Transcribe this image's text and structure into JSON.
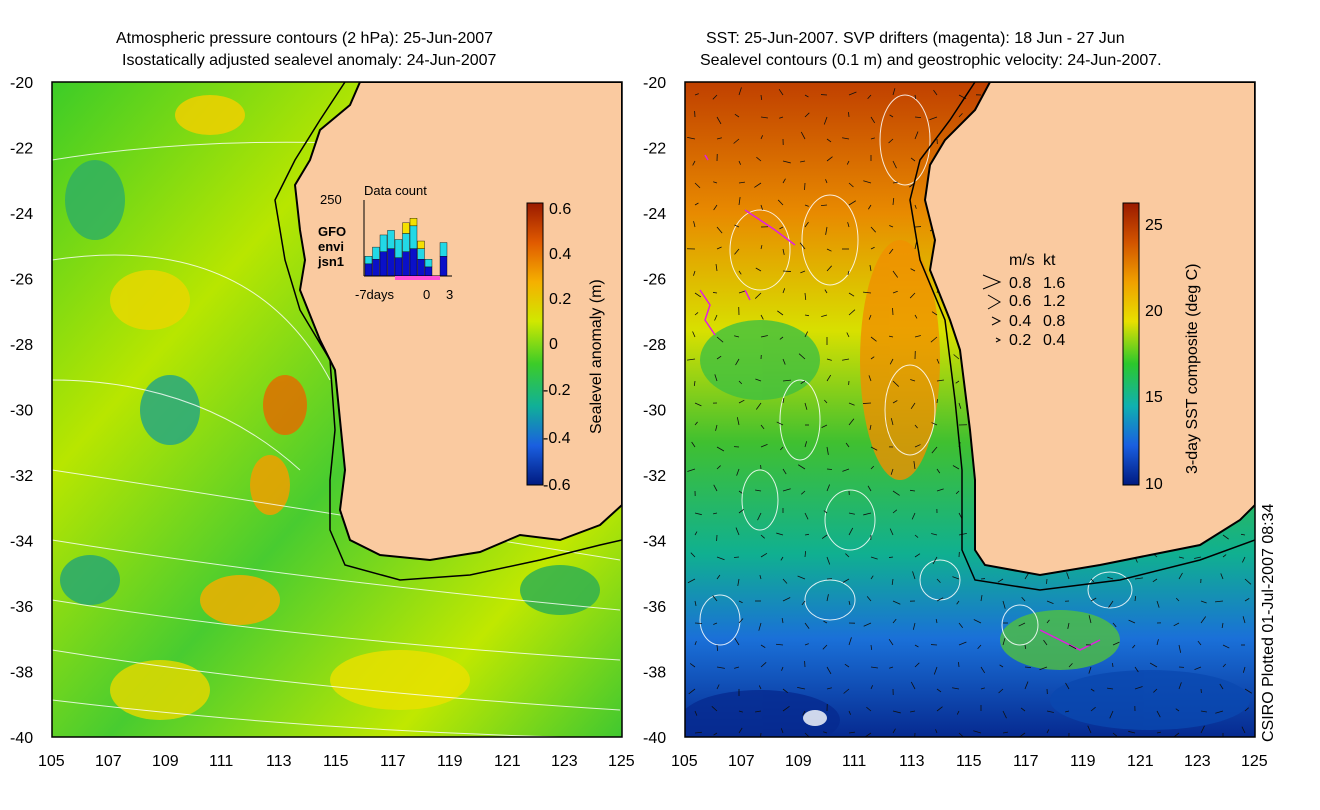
{
  "left_map": {
    "title_line1": "Atmospheric pressure contours (2 hPa): 25-Jun-2007",
    "title_line2": "Isostatically adjusted sealevel anomaly: 24-Jun-2007",
    "colorbar_label": "Sealevel anomaly (m)",
    "colorbar_ticks": [
      "0.6",
      "0.4",
      "0.2",
      "0",
      "-0.2",
      "-0.4",
      "-0.6"
    ],
    "colorbar_colors": [
      "#9a1a00",
      "#e05a00",
      "#f5b000",
      "#d0e800",
      "#3ccc28",
      "#10b098",
      "#1a5fe0",
      "#001a80"
    ],
    "inset": {
      "title": "Data count",
      "ymax": "250",
      "legend": [
        {
          "label": "GFO",
          "color": "#f5e000"
        },
        {
          "label": "envi",
          "color": "#22d8e6"
        },
        {
          "label": "jsn1",
          "color": "#0a10c8"
        }
      ],
      "xlabels": [
        "-7days",
        "0",
        "3"
      ],
      "bars": [
        {
          "jsn1": 40,
          "envi": 25,
          "gfo": 0
        },
        {
          "jsn1": 55,
          "envi": 40,
          "gfo": 0
        },
        {
          "jsn1": 80,
          "envi": 55,
          "gfo": 0
        },
        {
          "jsn1": 90,
          "envi": 60,
          "gfo": 0
        },
        {
          "jsn1": 60,
          "envi": 60,
          "gfo": 0
        },
        {
          "jsn1": 80,
          "envi": 60,
          "gfo": 35
        },
        {
          "jsn1": 90,
          "envi": 75,
          "gfo": 25
        },
        {
          "jsn1": 55,
          "envi": 35,
          "gfo": 25
        },
        {
          "jsn1": 30,
          "envi": 25,
          "gfo": 0
        },
        {
          "jsn1": 0,
          "envi": 0,
          "gfo": 0
        },
        {
          "jsn1": 65,
          "envi": 45,
          "gfo": 0
        }
      ]
    }
  },
  "right_map": {
    "title_line1": "SST: 25-Jun-2007. SVP drifters (magenta): 18 Jun - 27 Jun",
    "title_line2": "Sealevel contours (0.1 m) and geostrophic velocity: 24-Jun-2007.",
    "colorbar_label": "3-day SST composite (deg C)",
    "colorbar_ticks": [
      "25",
      "20",
      "15",
      "10"
    ],
    "colorbar_colors": [
      "#9a1a00",
      "#d25400",
      "#f0a000",
      "#e8e000",
      "#2cc82c",
      "#10b0b0",
      "#1a5fe0",
      "#001a80"
    ],
    "velocity_legend": {
      "header_ms": "m/s",
      "header_kt": "kt",
      "rows": [
        {
          "ms": "0.8",
          "kt": "1.6"
        },
        {
          "ms": "0.6",
          "kt": "1.2"
        },
        {
          "ms": "0.4",
          "kt": "0.8"
        },
        {
          "ms": "0.2",
          "kt": "0.4"
        }
      ]
    }
  },
  "axes": {
    "lat_labels": [
      "-20",
      "-22",
      "-24",
      "-26",
      "-28",
      "-30",
      "-32",
      "-34",
      "-36",
      "-38",
      "-40"
    ],
    "lon_labels": [
      "105",
      "107",
      "109",
      "111",
      "113",
      "115",
      "117",
      "119",
      "121",
      "123",
      "125"
    ]
  },
  "credit": "CSIRO Plotted 01-Jul-2007 08:34",
  "land_color": "#facaa0"
}
